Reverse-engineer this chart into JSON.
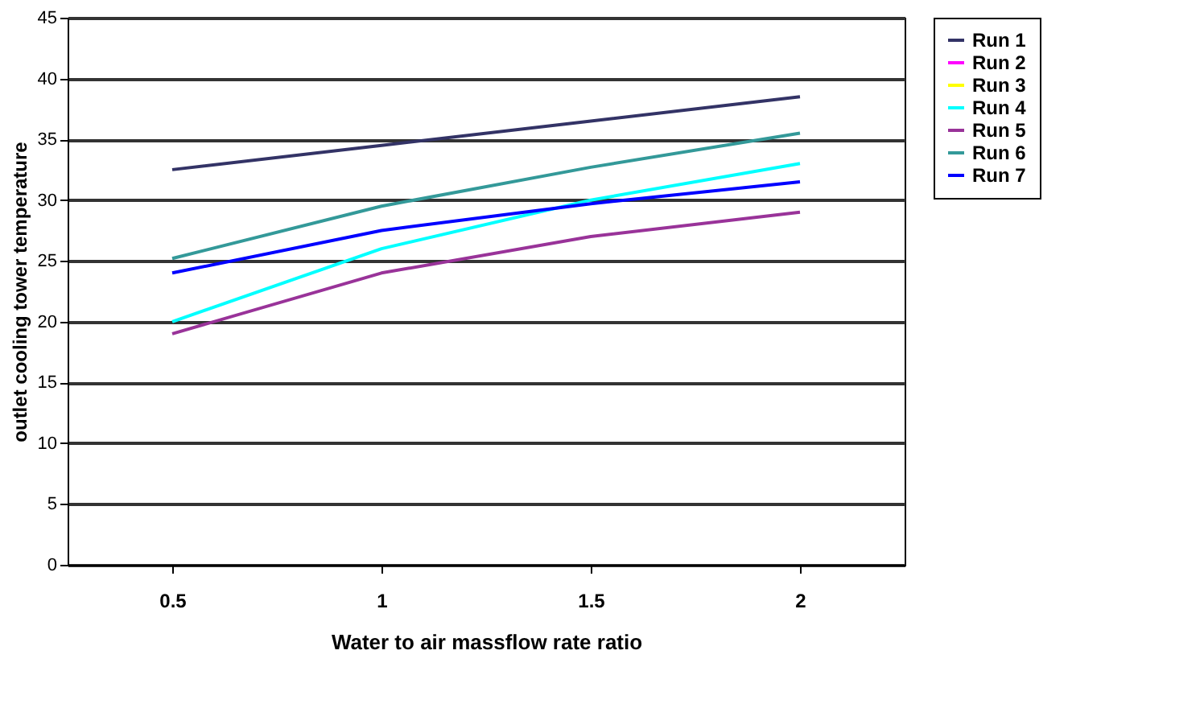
{
  "chart_data": {
    "type": "line",
    "xlabel": "Water to air massflow rate ratio",
    "ylabel": "outlet cooling tower temperature",
    "categories": [
      "0.5",
      "1",
      "1.5",
      "2"
    ],
    "series": [
      {
        "name": "Run 1",
        "color": "#333366",
        "values": [
          32.5,
          34.5,
          36.5,
          38.5
        ]
      },
      {
        "name": "Run 2",
        "color": "#ff00ff",
        "values": [
          null,
          null,
          null,
          null
        ]
      },
      {
        "name": "Run 3",
        "color": "#ffff00",
        "values": [
          null,
          null,
          null,
          null
        ]
      },
      {
        "name": "Run 4",
        "color": "#00ffff",
        "values": [
          20,
          26,
          30,
          33
        ]
      },
      {
        "name": "Run 5",
        "color": "#993399",
        "values": [
          19,
          24,
          27,
          29
        ]
      },
      {
        "name": "Run 6",
        "color": "#339999",
        "values": [
          25.2,
          29.5,
          32.7,
          35.5
        ]
      },
      {
        "name": "Run 7",
        "color": "#0000ff",
        "values": [
          24,
          27.5,
          29.7,
          31.5
        ]
      }
    ],
    "ylim": [
      0,
      45
    ],
    "yticks": [
      0,
      5,
      10,
      15,
      20,
      25,
      30,
      35,
      40,
      45
    ],
    "grid": "y",
    "legend": "right",
    "marker": "none",
    "line_style": "solid"
  }
}
